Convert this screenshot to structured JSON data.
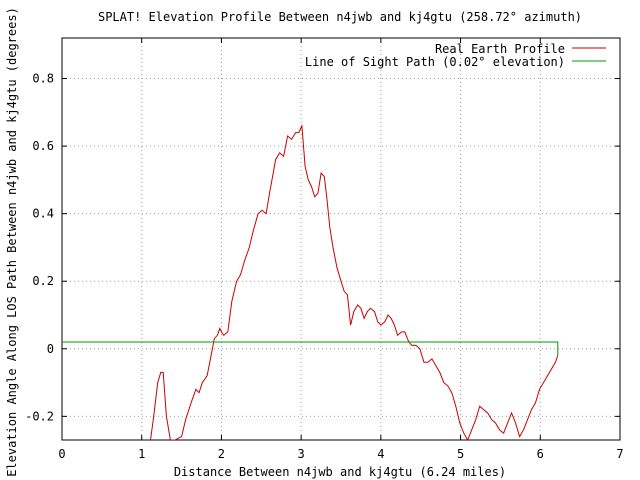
{
  "chart_data": {
    "type": "line",
    "title": "SPLAT! Elevation Profile Between n4jwb and kj4gtu (258.72° azimuth)",
    "xlabel": "Distance Between n4jwb and kj4gtu (6.24 miles)",
    "ylabel": "Elevation Angle Along LOS Path Between n4jwb and kj4gtu (degrees)",
    "xlim": [
      0,
      7
    ],
    "ylim": [
      -0.27,
      0.92
    ],
    "x_ticks": [
      0,
      1,
      2,
      3,
      4,
      5,
      6,
      7
    ],
    "x_tick_labels": [
      "0",
      "1",
      "2",
      "3",
      "4",
      "5",
      "6",
      "7"
    ],
    "y_ticks": [
      -0.2,
      0,
      0.2,
      0.4,
      0.6,
      0.8
    ],
    "y_tick_labels": [
      "-0.2",
      "0",
      "0.2",
      "0.4",
      "0.6",
      "0.8"
    ],
    "grid": true,
    "legend_position": "top-right",
    "series": [
      {
        "name": "Real Earth Profile",
        "color": "#cc0000",
        "x": [
          1.11,
          1.15,
          1.2,
          1.24,
          1.27,
          1.31,
          1.36,
          1.42,
          1.5,
          1.55,
          1.62,
          1.68,
          1.72,
          1.76,
          1.82,
          1.87,
          1.91,
          1.95,
          1.98,
          2.0,
          2.03,
          2.08,
          2.13,
          2.19,
          2.24,
          2.29,
          2.35,
          2.4,
          2.46,
          2.51,
          2.56,
          2.61,
          2.65,
          2.68,
          2.73,
          2.78,
          2.83,
          2.88,
          2.93,
          2.97,
          3.01,
          3.05,
          3.09,
          3.13,
          3.17,
          3.21,
          3.25,
          3.29,
          3.32,
          3.36,
          3.4,
          3.45,
          3.5,
          3.54,
          3.58,
          3.62,
          3.66,
          3.71,
          3.75,
          3.79,
          3.83,
          3.87,
          3.92,
          3.96,
          4.0,
          4.05,
          4.09,
          4.13,
          4.17,
          4.21,
          4.26,
          4.3,
          4.35,
          4.39,
          4.44,
          4.49,
          4.54,
          4.59,
          4.64,
          4.69,
          4.74,
          4.79,
          4.84,
          4.89,
          4.94,
          4.99,
          5.04,
          5.09,
          5.14,
          5.19,
          5.24,
          5.29,
          5.34,
          5.39,
          5.44,
          5.49,
          5.54,
          5.59,
          5.64,
          5.69,
          5.74,
          5.79,
          5.84,
          5.89,
          5.94,
          5.99,
          6.04,
          6.09,
          6.14,
          6.19,
          6.22
        ],
        "y": [
          -0.27,
          -0.2,
          -0.1,
          -0.07,
          -0.07,
          -0.2,
          -0.27,
          -0.27,
          -0.26,
          -0.21,
          -0.16,
          -0.12,
          -0.13,
          -0.1,
          -0.08,
          -0.02,
          0.03,
          0.04,
          0.06,
          0.05,
          0.04,
          0.05,
          0.14,
          0.2,
          0.22,
          0.26,
          0.3,
          0.35,
          0.4,
          0.41,
          0.4,
          0.47,
          0.52,
          0.56,
          0.58,
          0.57,
          0.63,
          0.62,
          0.64,
          0.64,
          0.66,
          0.54,
          0.5,
          0.48,
          0.45,
          0.46,
          0.52,
          0.51,
          0.45,
          0.36,
          0.3,
          0.24,
          0.2,
          0.17,
          0.16,
          0.07,
          0.11,
          0.13,
          0.12,
          0.09,
          0.11,
          0.12,
          0.11,
          0.08,
          0.07,
          0.08,
          0.1,
          0.09,
          0.07,
          0.04,
          0.05,
          0.05,
          0.02,
          0.01,
          0.01,
          0.0,
          -0.04,
          -0.04,
          -0.03,
          -0.05,
          -0.07,
          -0.1,
          -0.11,
          -0.13,
          -0.17,
          -0.22,
          -0.25,
          -0.27,
          -0.24,
          -0.21,
          -0.17,
          -0.18,
          -0.19,
          -0.21,
          -0.22,
          -0.24,
          -0.25,
          -0.22,
          -0.19,
          -0.22,
          -0.26,
          -0.24,
          -0.21,
          -0.18,
          -0.16,
          -0.12,
          -0.1,
          -0.08,
          -0.06,
          -0.04,
          -0.02
        ],
        "clip_below": true
      },
      {
        "name": "Line of Sight Path (0.02° elevation)",
        "color": "#009900",
        "x": [
          0,
          6.22,
          6.22
        ],
        "y": [
          0.02,
          0.02,
          -0.02
        ]
      }
    ]
  }
}
